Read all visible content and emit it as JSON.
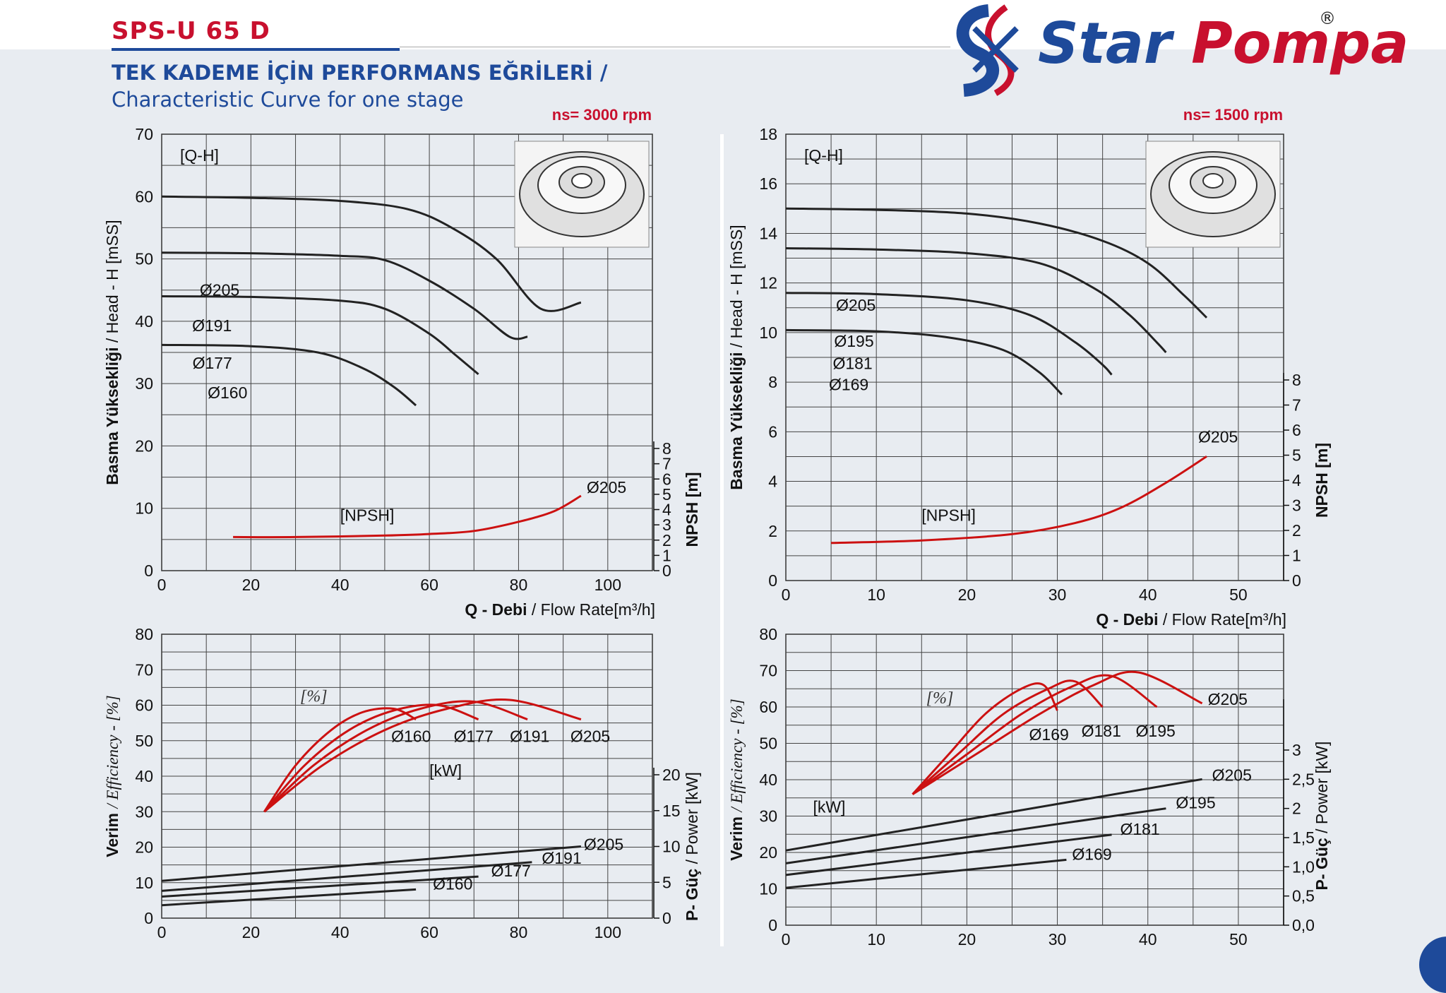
{
  "header": {
    "model": "SPS-U 65 D",
    "title_tr": "TEK KADEME İÇİN PERFORMANS EĞRİLERİ  /",
    "title_en": "Characteristic Curve for one stage",
    "logo_word1": "Star",
    "logo_word2": "Pompa",
    "logo_reg": "®",
    "brand_blue": "#1e4a9a",
    "brand_red": "#c8102e"
  },
  "chart_data": [
    {
      "type": "line",
      "panel": "top-left",
      "speed_label": "ns= 3000 rpm",
      "xlabel_bold": "Q - Debi",
      "xlabel": "/ Flow Rate[m³/h]",
      "ylabel": "Basma Yüksekliği / Head - H [mSS]",
      "y2label": "NPSH [m]",
      "xlim": [
        0,
        110
      ],
      "ylim": [
        0,
        70
      ],
      "xticks": [
        "0",
        "20",
        "40",
        "60",
        "80",
        "100"
      ],
      "yticks": [
        "0",
        "10",
        "20",
        "30",
        "40",
        "50",
        "60",
        "70"
      ],
      "y2lim": [
        0,
        8
      ],
      "y2ticks": [
        "0",
        "1",
        "2",
        "3",
        "4",
        "5",
        "6",
        "7",
        "8"
      ],
      "grid": true,
      "qh_label": "[Q-H]",
      "npsh_label": "[NPSH]",
      "series": [
        {
          "name": "Ø205",
          "axis": "y",
          "color": "#222222",
          "points": [
            [
              0,
              60
            ],
            [
              20,
              59.8
            ],
            [
              40,
              59.3
            ],
            [
              55,
              58
            ],
            [
              65,
              55
            ],
            [
              75,
              50
            ],
            [
              85,
              42
            ],
            [
              94,
              43
            ]
          ]
        },
        {
          "name": "Ø191",
          "axis": "y",
          "color": "#222222",
          "points": [
            [
              0,
              51
            ],
            [
              20,
              50.9
            ],
            [
              40,
              50.5
            ],
            [
              50,
              49.8
            ],
            [
              60,
              46.5
            ],
            [
              70,
              42
            ],
            [
              78,
              37.5
            ],
            [
              82,
              37.5
            ]
          ]
        },
        {
          "name": "Ø177",
          "axis": "y",
          "color": "#222222",
          "points": [
            [
              0,
              44
            ],
            [
              20,
              43.9
            ],
            [
              40,
              43.3
            ],
            [
              50,
              42
            ],
            [
              60,
              38
            ],
            [
              66,
              34.5
            ],
            [
              71,
              31.5
            ]
          ]
        },
        {
          "name": "Ø160",
          "axis": "y",
          "color": "#222222",
          "points": [
            [
              0,
              36.2
            ],
            [
              20,
              36
            ],
            [
              35,
              35
            ],
            [
              45,
              32.5
            ],
            [
              52,
              29.5
            ],
            [
              57,
              26.5
            ]
          ]
        },
        {
          "name": "Ø205",
          "axis": "y2",
          "color": "#cc1111",
          "points": [
            [
              16,
              2.2
            ],
            [
              30,
              2.2
            ],
            [
              50,
              2.3
            ],
            [
              60,
              2.4
            ],
            [
              70,
              2.6
            ],
            [
              80,
              3.2
            ],
            [
              88,
              3.9
            ],
            [
              94,
              4.9
            ]
          ]
        }
      ]
    },
    {
      "type": "line",
      "panel": "top-right",
      "speed_label": "ns= 1500 rpm",
      "xlabel_bold": "Q - Debi",
      "xlabel": "/ Flow Rate[m³/h]",
      "ylabel": "Basma Yüksekliği / Head - H [mSS]",
      "y2label": "NPSH [m]",
      "xlim": [
        0,
        55
      ],
      "ylim": [
        0,
        18
      ],
      "xticks": [
        "0",
        "10",
        "20",
        "30",
        "40",
        "50"
      ],
      "yticks": [
        "0",
        "2",
        "4",
        "6",
        "8",
        "10",
        "12",
        "14",
        "16",
        "18"
      ],
      "y2lim": [
        0,
        8
      ],
      "y2ticks": [
        "0",
        "1",
        "2",
        "3",
        "4",
        "5",
        "6",
        "7",
        "8"
      ],
      "grid": true,
      "qh_label": "[Q-H]",
      "npsh_label": "[NPSH]",
      "series": [
        {
          "name": "Ø205",
          "axis": "y",
          "color": "#222222",
          "points": [
            [
              0,
              15
            ],
            [
              10,
              14.95
            ],
            [
              20,
              14.8
            ],
            [
              28,
              14.4
            ],
            [
              35,
              13.7
            ],
            [
              40,
              12.8
            ],
            [
              44,
              11.5
            ],
            [
              46.5,
              10.6
            ]
          ]
        },
        {
          "name": "Ø195",
          "axis": "y",
          "color": "#222222",
          "points": [
            [
              0,
              13.4
            ],
            [
              10,
              13.35
            ],
            [
              20,
              13.2
            ],
            [
              28,
              12.8
            ],
            [
              34,
              11.8
            ],
            [
              38,
              10.7
            ],
            [
              41,
              9.6
            ],
            [
              42,
              9.2
            ]
          ]
        },
        {
          "name": "Ø181",
          "axis": "y",
          "color": "#222222",
          "points": [
            [
              0,
              11.6
            ],
            [
              10,
              11.55
            ],
            [
              20,
              11.3
            ],
            [
              27,
              10.7
            ],
            [
              32,
              9.6
            ],
            [
              35,
              8.7
            ],
            [
              36,
              8.3
            ]
          ]
        },
        {
          "name": "Ø169",
          "axis": "y",
          "color": "#222222",
          "points": [
            [
              0,
              10.1
            ],
            [
              10,
              10.05
            ],
            [
              18,
              9.8
            ],
            [
              24,
              9.3
            ],
            [
              28,
              8.4
            ],
            [
              30.5,
              7.5
            ]
          ]
        },
        {
          "name": "Ø205",
          "axis": "y2",
          "color": "#cc1111",
          "points": [
            [
              5,
              1.5
            ],
            [
              15,
              1.6
            ],
            [
              25,
              1.85
            ],
            [
              32,
              2.3
            ],
            [
              37,
              2.9
            ],
            [
              42,
              3.9
            ],
            [
              46.5,
              4.95
            ]
          ]
        }
      ]
    },
    {
      "type": "line",
      "panel": "bottom-left",
      "ylabel": "Verim / Efficiency - [%]",
      "y2label": "P- Güç / Power [kW]",
      "xlim": [
        0,
        110
      ],
      "ylim": [
        0,
        80
      ],
      "xticks": [
        "0",
        "20",
        "40",
        "60",
        "80",
        "100"
      ],
      "yticks": [
        "0",
        "10",
        "20",
        "30",
        "40",
        "50",
        "60",
        "70",
        "80"
      ],
      "y2lim": [
        0,
        20
      ],
      "y2ticks": [
        "0",
        "5",
        "10",
        "15",
        "20"
      ],
      "grid": true,
      "eff_label": "[%]",
      "power_label": "[kW]",
      "series": [
        {
          "name": "Ø160",
          "axis": "y",
          "color": "#cc1111",
          "points": [
            [
              23,
              30
            ],
            [
              30,
              43
            ],
            [
              38,
              53
            ],
            [
              45,
              58
            ],
            [
              52,
              59
            ],
            [
              57,
              56
            ]
          ]
        },
        {
          "name": "Ø177",
          "axis": "y",
          "color": "#cc1111",
          "points": [
            [
              23,
              30
            ],
            [
              32,
              43
            ],
            [
              42,
              53
            ],
            [
              52,
              58.5
            ],
            [
              62,
              60
            ],
            [
              71,
              56
            ]
          ]
        },
        {
          "name": "Ø191",
          "axis": "y",
          "color": "#cc1111",
          "points": [
            [
              23,
              30
            ],
            [
              34,
              43
            ],
            [
              46,
              53
            ],
            [
              58,
              59
            ],
            [
              70,
              61
            ],
            [
              82,
              56
            ]
          ]
        },
        {
          "name": "Ø205",
          "axis": "y",
          "color": "#cc1111",
          "points": [
            [
              23,
              30
            ],
            [
              36,
              43
            ],
            [
              50,
              53
            ],
            [
              64,
              59
            ],
            [
              78,
              61.5
            ],
            [
              94,
              56
            ]
          ]
        },
        {
          "name": "Ø205",
          "axis": "y2",
          "color": "#222222",
          "points": [
            [
              0,
              5.2
            ],
            [
              94,
              10
            ]
          ]
        },
        {
          "name": "Ø191",
          "axis": "y2",
          "color": "#222222",
          "points": [
            [
              0,
              3.8
            ],
            [
              83,
              7.8
            ]
          ]
        },
        {
          "name": "Ø177",
          "axis": "y2",
          "color": "#222222",
          "points": [
            [
              0,
              3
            ],
            [
              71,
              5.8
            ]
          ]
        },
        {
          "name": "Ø160",
          "axis": "y2",
          "color": "#222222",
          "points": [
            [
              0,
              1.8
            ],
            [
              57,
              4
            ]
          ]
        }
      ]
    },
    {
      "type": "line",
      "panel": "bottom-right",
      "ylabel": "Verim / Efficiency - [%]",
      "y2label": "P- Güç / Power [kW]",
      "xlim": [
        0,
        55
      ],
      "ylim": [
        0,
        80
      ],
      "xticks": [
        "0",
        "10",
        "20",
        "30",
        "40",
        "50"
      ],
      "yticks": [
        "0",
        "10",
        "20",
        "30",
        "40",
        "50",
        "60",
        "70",
        "80"
      ],
      "y2lim": [
        0.0,
        4.0
      ],
      "y2ticks": [
        "0,0",
        "0,5",
        "1,0",
        "1,5",
        "2",
        "2,5",
        "3"
      ],
      "grid": true,
      "eff_label": "[%]",
      "power_label": "[kW]",
      "series": [
        {
          "name": "Ø169",
          "axis": "y",
          "color": "#cc1111",
          "points": [
            [
              14,
              36
            ],
            [
              18,
              47
            ],
            [
              22,
              58
            ],
            [
              26,
              65
            ],
            [
              28.5,
              66
            ],
            [
              30,
              59
            ]
          ]
        },
        {
          "name": "Ø181",
          "axis": "y",
          "color": "#cc1111",
          "points": [
            [
              14,
              36
            ],
            [
              19,
              47
            ],
            [
              24,
              58
            ],
            [
              29,
              65
            ],
            [
              32,
              67
            ],
            [
              35,
              60
            ]
          ]
        },
        {
          "name": "Ø195",
          "axis": "y",
          "color": "#cc1111",
          "points": [
            [
              14,
              36
            ],
            [
              20,
              47
            ],
            [
              26,
              58
            ],
            [
              31.5,
              65.5
            ],
            [
              36,
              68.5
            ],
            [
              41,
              60
            ]
          ]
        },
        {
          "name": "Ø205",
          "axis": "y",
          "color": "#cc1111",
          "points": [
            [
              14,
              36
            ],
            [
              21,
              47
            ],
            [
              28,
              58
            ],
            [
              34,
              66
            ],
            [
              39,
              69.5
            ],
            [
              46,
              61
            ]
          ]
        },
        {
          "name": "Ø205",
          "axis": "y2",
          "color": "#222222",
          "points": [
            [
              0,
              1.28
            ],
            [
              46,
              2.5
            ]
          ]
        },
        {
          "name": "Ø195",
          "axis": "y2",
          "color": "#222222",
          "points": [
            [
              0,
              1.06
            ],
            [
              42,
              2.0
            ]
          ]
        },
        {
          "name": "Ø181",
          "axis": "y2",
          "color": "#222222",
          "points": [
            [
              0,
              0.86
            ],
            [
              36,
              1.55
            ]
          ]
        },
        {
          "name": "Ø169",
          "axis": "y2",
          "color": "#222222",
          "points": [
            [
              0,
              0.64
            ],
            [
              31,
              1.12
            ]
          ]
        }
      ]
    }
  ]
}
